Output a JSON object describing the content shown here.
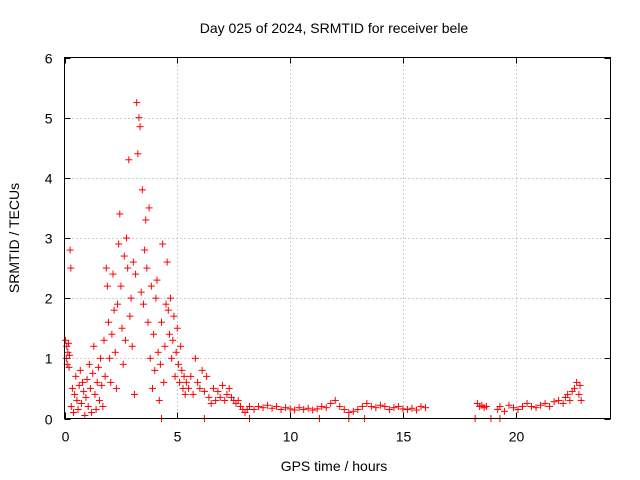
{
  "chart_data": {
    "type": "scatter",
    "title": "Day 025 of 2024, SRMTID for receiver bele",
    "xlabel": "GPS time / hours",
    "ylabel": "SRMTID / TECUs",
    "xlim": [
      0,
      24.2
    ],
    "ylim": [
      0,
      6
    ],
    "x_ticks": [
      0,
      5,
      10,
      15,
      20
    ],
    "y_ticks": [
      0,
      1,
      2,
      3,
      4,
      5,
      6
    ],
    "grid": true,
    "marker": "+",
    "color": "#ff0000",
    "series": [
      {
        "name": "SRMTID",
        "points": [
          [
            0.05,
            1.3
          ],
          [
            0.08,
            1.0
          ],
          [
            0.1,
            1.2
          ],
          [
            0.12,
            0.9
          ],
          [
            0.15,
            1.1
          ],
          [
            0.18,
            1.25
          ],
          [
            0.2,
            0.85
          ],
          [
            0.22,
            1.05
          ],
          [
            0.25,
            2.8
          ],
          [
            0.28,
            2.5
          ],
          [
            0.3,
            0.2
          ],
          [
            0.35,
            0.5
          ],
          [
            0.4,
            0.1
          ],
          [
            0.45,
            0.4
          ],
          [
            0.5,
            0.7
          ],
          [
            0.55,
            0.3
          ],
          [
            0.6,
            0.15
          ],
          [
            0.65,
            0.55
          ],
          [
            0.7,
            0.8
          ],
          [
            0.75,
            0.25
          ],
          [
            0.8,
            0.6
          ],
          [
            0.85,
            0.45
          ],
          [
            0.9,
            0.05
          ],
          [
            0.95,
            0.35
          ],
          [
            1.0,
            0.65
          ],
          [
            1.05,
            0.2
          ],
          [
            1.1,
            0.9
          ],
          [
            1.15,
            0.5
          ],
          [
            1.2,
            0.1
          ],
          [
            1.25,
            0.75
          ],
          [
            1.3,
            1.2
          ],
          [
            1.35,
            0.4
          ],
          [
            1.4,
            0.15
          ],
          [
            1.45,
            0.6
          ],
          [
            1.5,
            0.85
          ],
          [
            1.55,
            0.3
          ],
          [
            1.6,
            1.0
          ],
          [
            1.65,
            0.55
          ],
          [
            1.7,
            0.2
          ],
          [
            1.75,
            1.3
          ],
          [
            1.8,
            0.7
          ],
          [
            1.85,
            2.5
          ],
          [
            1.9,
            2.2
          ],
          [
            1.95,
            1.6
          ],
          [
            2.0,
            1.0
          ],
          [
            2.05,
            0.6
          ],
          [
            2.1,
            1.4
          ],
          [
            2.15,
            2.4
          ],
          [
            2.2,
            1.8
          ],
          [
            2.25,
            1.1
          ],
          [
            2.3,
            0.5
          ],
          [
            2.35,
            1.9
          ],
          [
            2.4,
            2.9
          ],
          [
            2.45,
            3.4
          ],
          [
            2.5,
            2.2
          ],
          [
            2.55,
            1.5
          ],
          [
            2.6,
            0.9
          ],
          [
            2.65,
            2.7
          ],
          [
            2.7,
            1.3
          ],
          [
            2.75,
            3.0
          ],
          [
            2.8,
            2.5
          ],
          [
            2.85,
            4.3
          ],
          [
            2.9,
            1.7
          ],
          [
            2.95,
            2.0
          ],
          [
            3.0,
            1.2
          ],
          [
            3.05,
            2.6
          ],
          [
            3.1,
            0.4
          ],
          [
            3.15,
            2.4
          ],
          [
            3.2,
            5.25
          ],
          [
            3.25,
            4.4
          ],
          [
            3.3,
            5.0
          ],
          [
            3.35,
            4.85
          ],
          [
            3.4,
            2.1
          ],
          [
            3.45,
            3.8
          ],
          [
            3.5,
            1.9
          ],
          [
            3.55,
            2.8
          ],
          [
            3.6,
            3.3
          ],
          [
            3.65,
            2.5
          ],
          [
            3.7,
            1.6
          ],
          [
            3.75,
            3.5
          ],
          [
            3.8,
            1.0
          ],
          [
            3.85,
            2.2
          ],
          [
            3.9,
            0.5
          ],
          [
            3.95,
            1.4
          ],
          [
            4.0,
            0.8
          ],
          [
            4.05,
            2.0
          ],
          [
            4.1,
            2.3
          ],
          [
            4.15,
            1.1
          ],
          [
            4.2,
            0.3
          ],
          [
            4.25,
            0.9
          ],
          [
            4.3,
            1.6
          ],
          [
            4.35,
            2.9
          ],
          [
            4.4,
            0.6
          ],
          [
            4.45,
            1.2
          ],
          [
            4.5,
            1.9
          ],
          [
            4.55,
            2.6
          ],
          [
            4.6,
            1.8
          ],
          [
            4.65,
            1.4
          ],
          [
            4.7,
            2.0
          ],
          [
            4.75,
            1.0
          ],
          [
            4.8,
            1.3
          ],
          [
            4.85,
            1.7
          ],
          [
            4.9,
            0.7
          ],
          [
            4.95,
            1.1
          ],
          [
            5.0,
            1.5
          ],
          [
            5.05,
            0.9
          ],
          [
            5.1,
            0.6
          ],
          [
            5.15,
            1.2
          ],
          [
            5.2,
            0.8
          ],
          [
            5.25,
            0.5
          ],
          [
            5.3,
            0.7
          ],
          [
            5.35,
            0.4
          ],
          [
            5.4,
            0.6
          ],
          [
            5.5,
            0.5
          ],
          [
            5.6,
            0.7
          ],
          [
            5.7,
            0.4
          ],
          [
            5.8,
            1.0
          ],
          [
            5.9,
            0.6
          ],
          [
            6.0,
            0.5
          ],
          [
            6.1,
            0.8
          ],
          [
            6.2,
            0.45
          ],
          [
            6.3,
            0.7
          ],
          [
            6.4,
            0.35
          ],
          [
            6.5,
            0.25
          ],
          [
            6.6,
            0.5
          ],
          [
            6.7,
            0.3
          ],
          [
            6.8,
            0.45
          ],
          [
            6.9,
            0.35
          ],
          [
            7.0,
            0.55
          ],
          [
            7.1,
            0.3
          ],
          [
            7.2,
            0.4
          ],
          [
            7.3,
            0.5
          ],
          [
            7.4,
            0.35
          ],
          [
            7.5,
            0.3
          ],
          [
            7.6,
            0.25
          ],
          [
            7.7,
            0.3
          ],
          [
            7.8,
            0.2
          ],
          [
            7.9,
            0.15
          ],
          [
            8.0,
            0.1
          ],
          [
            8.1,
            0.15
          ],
          [
            8.2,
            0.2
          ],
          [
            8.4,
            0.15
          ],
          [
            8.6,
            0.2
          ],
          [
            8.8,
            0.18
          ],
          [
            9.0,
            0.22
          ],
          [
            9.2,
            0.17
          ],
          [
            9.4,
            0.2
          ],
          [
            9.6,
            0.15
          ],
          [
            9.8,
            0.18
          ],
          [
            10.0,
            0.16
          ],
          [
            10.2,
            0.14
          ],
          [
            10.4,
            0.18
          ],
          [
            10.6,
            0.15
          ],
          [
            10.8,
            0.17
          ],
          [
            11.0,
            0.14
          ],
          [
            11.2,
            0.16
          ],
          [
            11.4,
            0.2
          ],
          [
            11.6,
            0.18
          ],
          [
            11.8,
            0.25
          ],
          [
            12.0,
            0.3
          ],
          [
            12.2,
            0.2
          ],
          [
            12.4,
            0.15
          ],
          [
            12.6,
            0.1
          ],
          [
            12.8,
            0.12
          ],
          [
            13.0,
            0.15
          ],
          [
            13.2,
            0.2
          ],
          [
            13.4,
            0.25
          ],
          [
            13.6,
            0.2
          ],
          [
            13.8,
            0.18
          ],
          [
            14.0,
            0.22
          ],
          [
            14.2,
            0.2
          ],
          [
            14.4,
            0.15
          ],
          [
            14.6,
            0.18
          ],
          [
            14.8,
            0.2
          ],
          [
            15.0,
            0.16
          ],
          [
            15.2,
            0.15
          ],
          [
            15.4,
            0.17
          ],
          [
            15.6,
            0.14
          ],
          [
            15.8,
            0.2
          ],
          [
            16.0,
            0.18
          ],
          [
            18.3,
            0.25
          ],
          [
            18.4,
            0.2
          ],
          [
            18.5,
            0.22
          ],
          [
            18.6,
            0.18
          ],
          [
            18.7,
            0.2
          ],
          [
            19.2,
            0.15
          ],
          [
            19.3,
            0.2
          ],
          [
            19.5,
            0.12
          ],
          [
            19.7,
            0.22
          ],
          [
            19.9,
            0.18
          ],
          [
            20.1,
            0.15
          ],
          [
            20.3,
            0.2
          ],
          [
            20.5,
            0.25
          ],
          [
            20.7,
            0.2
          ],
          [
            20.9,
            0.18
          ],
          [
            21.1,
            0.22
          ],
          [
            21.3,
            0.25
          ],
          [
            21.5,
            0.2
          ],
          [
            21.7,
            0.28
          ],
          [
            21.9,
            0.3
          ],
          [
            22.1,
            0.25
          ],
          [
            22.2,
            0.35
          ],
          [
            22.3,
            0.4
          ],
          [
            22.4,
            0.3
          ],
          [
            22.5,
            0.45
          ],
          [
            22.6,
            0.5
          ],
          [
            22.7,
            0.6
          ],
          [
            22.8,
            0.4
          ],
          [
            22.85,
            0.55
          ],
          [
            22.9,
            0.3
          ],
          [
            4.3,
            0.0
          ],
          [
            6.2,
            0.0
          ],
          [
            8.2,
            0.0
          ],
          [
            11.3,
            0.0
          ],
          [
            12.6,
            0.0
          ],
          [
            13.3,
            0.0
          ],
          [
            18.2,
            0.0
          ],
          [
            18.9,
            0.0
          ],
          [
            19.3,
            0.0
          ]
        ]
      }
    ]
  }
}
